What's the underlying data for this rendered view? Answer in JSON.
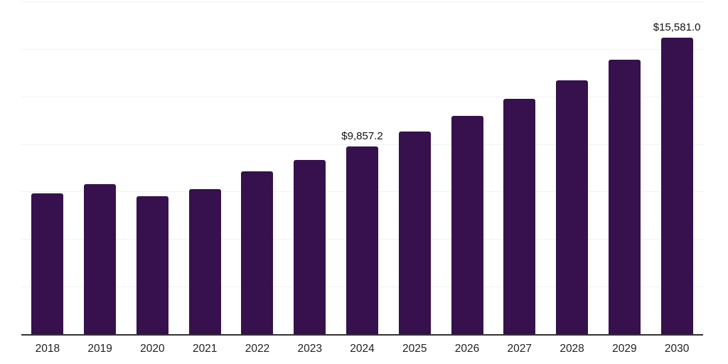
{
  "chart_data": {
    "type": "bar",
    "title": "",
    "xlabel": "",
    "ylabel": "",
    "categories": [
      "2018",
      "2019",
      "2020",
      "2021",
      "2022",
      "2023",
      "2024",
      "2025",
      "2026",
      "2027",
      "2028",
      "2029",
      "2030"
    ],
    "values": [
      7400,
      7890,
      7250,
      7630,
      8560,
      9160,
      9857.2,
      10660,
      11480,
      12380,
      13350,
      14430,
      15581.0
    ],
    "point_labels": [
      "",
      "",
      "",
      "",
      "",
      "",
      "$9,857.2",
      "",
      "",
      "",
      "",
      "",
      "$15,581.0"
    ],
    "ylim": [
      0,
      17500
    ],
    "grid_step": 2500,
    "grid": true,
    "legend": false,
    "y_tick_labels_visible": false,
    "colors": {
      "bar": "#36114D",
      "gridline": "#f2f2f2",
      "axis_line": "#333333",
      "tick_label": "#222222",
      "data_label": "#111111",
      "background": "#ffffff"
    }
  }
}
